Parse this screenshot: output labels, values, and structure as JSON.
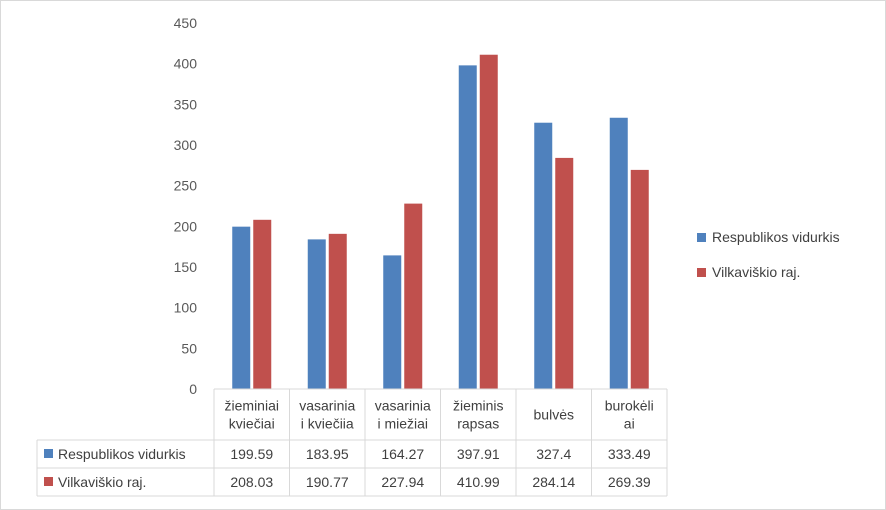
{
  "chart_data": {
    "type": "bar",
    "title": "",
    "xlabel": "",
    "ylabel": "",
    "ylim": [
      0,
      450
    ],
    "yticks": [
      0,
      50,
      100,
      150,
      200,
      250,
      300,
      350,
      400,
      450
    ],
    "grid": false,
    "legend_position": "right",
    "categories": [
      [
        "žieminiai",
        "kviečiai"
      ],
      [
        "vasarinia",
        "i kviečiia"
      ],
      [
        "vasarinia",
        "i miežiai"
      ],
      [
        "žieminis",
        "rapsas"
      ],
      [
        "bulvės"
      ],
      [
        "burokėli",
        "ai"
      ]
    ],
    "series": [
      {
        "name": "Respublikos vidurkis",
        "color": "#4f81bd",
        "values": [
          199.59,
          183.95,
          164.27,
          397.91,
          327.4,
          333.49
        ]
      },
      {
        "name": "Vilkaviškio raj.",
        "color": "#c0504d",
        "values": [
          208.03,
          190.77,
          227.94,
          410.99,
          284.14,
          269.39
        ]
      }
    ],
    "data_table": true
  }
}
